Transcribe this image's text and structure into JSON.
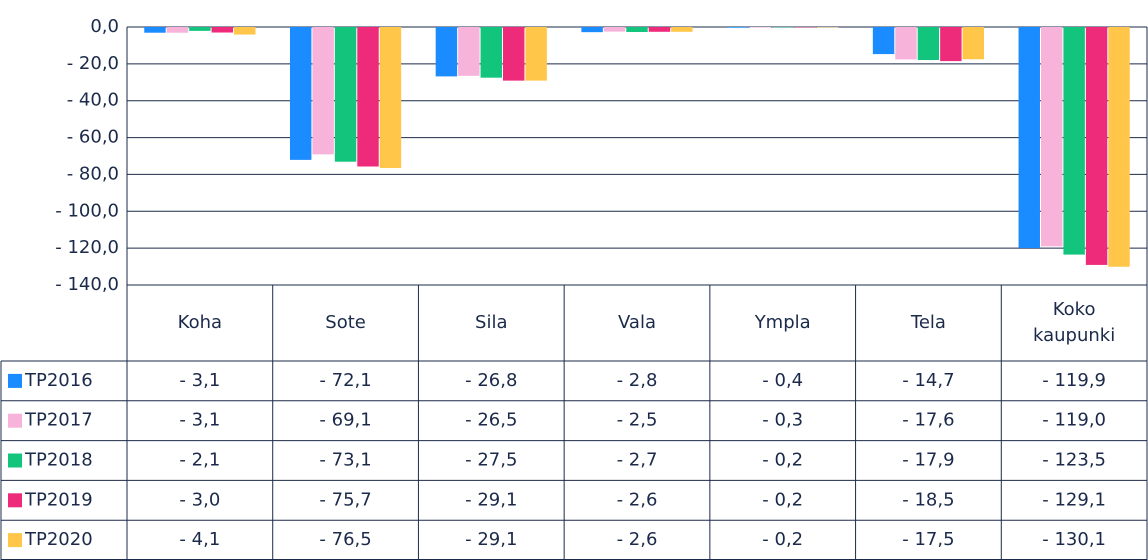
{
  "chart_data": {
    "type": "bar",
    "categories": [
      "Koha",
      "Sote",
      "Sila",
      "Vala",
      "Ympla",
      "Tela",
      "Koko kaupunki"
    ],
    "series": [
      {
        "name": "TP2016",
        "color": "#1a8cff",
        "values": [
          -3.1,
          -72.1,
          -26.8,
          -2.8,
          -0.4,
          -14.7,
          -119.9
        ],
        "value_labels": [
          "- 3,1",
          "- 72,1",
          "- 26,8",
          "- 2,8",
          "- 0,4",
          "- 14,7",
          "- 119,9"
        ]
      },
      {
        "name": "TP2017",
        "color": "#f7b3da",
        "values": [
          -3.1,
          -69.1,
          -26.5,
          -2.5,
          -0.3,
          -17.6,
          -119.0
        ],
        "value_labels": [
          "- 3,1",
          "- 69,1",
          "- 26,5",
          "- 2,5",
          "- 0,3",
          "- 17,6",
          "- 119,0"
        ]
      },
      {
        "name": "TP2018",
        "color": "#12c47c",
        "values": [
          -2.1,
          -73.1,
          -27.5,
          -2.7,
          -0.2,
          -17.9,
          -123.5
        ],
        "value_labels": [
          "- 2,1",
          "- 73,1",
          "- 27,5",
          "- 2,7",
          "- 0,2",
          "- 17,9",
          "- 123,5"
        ]
      },
      {
        "name": "TP2019",
        "color": "#ee2a7b",
        "values": [
          -3.0,
          -75.7,
          -29.1,
          -2.6,
          -0.2,
          -18.5,
          -129.1
        ],
        "value_labels": [
          "- 3,0",
          "- 75,7",
          "- 29,1",
          "- 2,6",
          "- 0,2",
          "- 18,5",
          "- 129,1"
        ]
      },
      {
        "name": "TP2020",
        "color": "#ffc64a",
        "values": [
          -4.1,
          -76.5,
          -29.1,
          -2.6,
          -0.2,
          -17.5,
          -130.1
        ],
        "value_labels": [
          "- 4,1",
          "- 76,5",
          "- 29,1",
          "- 2,6",
          "- 0,2",
          "- 17,5",
          "- 130,1"
        ]
      }
    ],
    "ylim": [
      -140,
      0
    ],
    "yticks": [
      {
        "value": 0,
        "label": "0,0"
      },
      {
        "value": -20,
        "label": "- 20,0"
      },
      {
        "value": -40,
        "label": "- 40,0"
      },
      {
        "value": -60,
        "label": "- 60,0"
      },
      {
        "value": -80,
        "label": "- 80,0"
      },
      {
        "value": -100,
        "label": "- 100,0"
      },
      {
        "value": -120,
        "label": "- 120,0"
      },
      {
        "value": -140,
        "label": "- 140,0"
      }
    ],
    "grid": true
  }
}
